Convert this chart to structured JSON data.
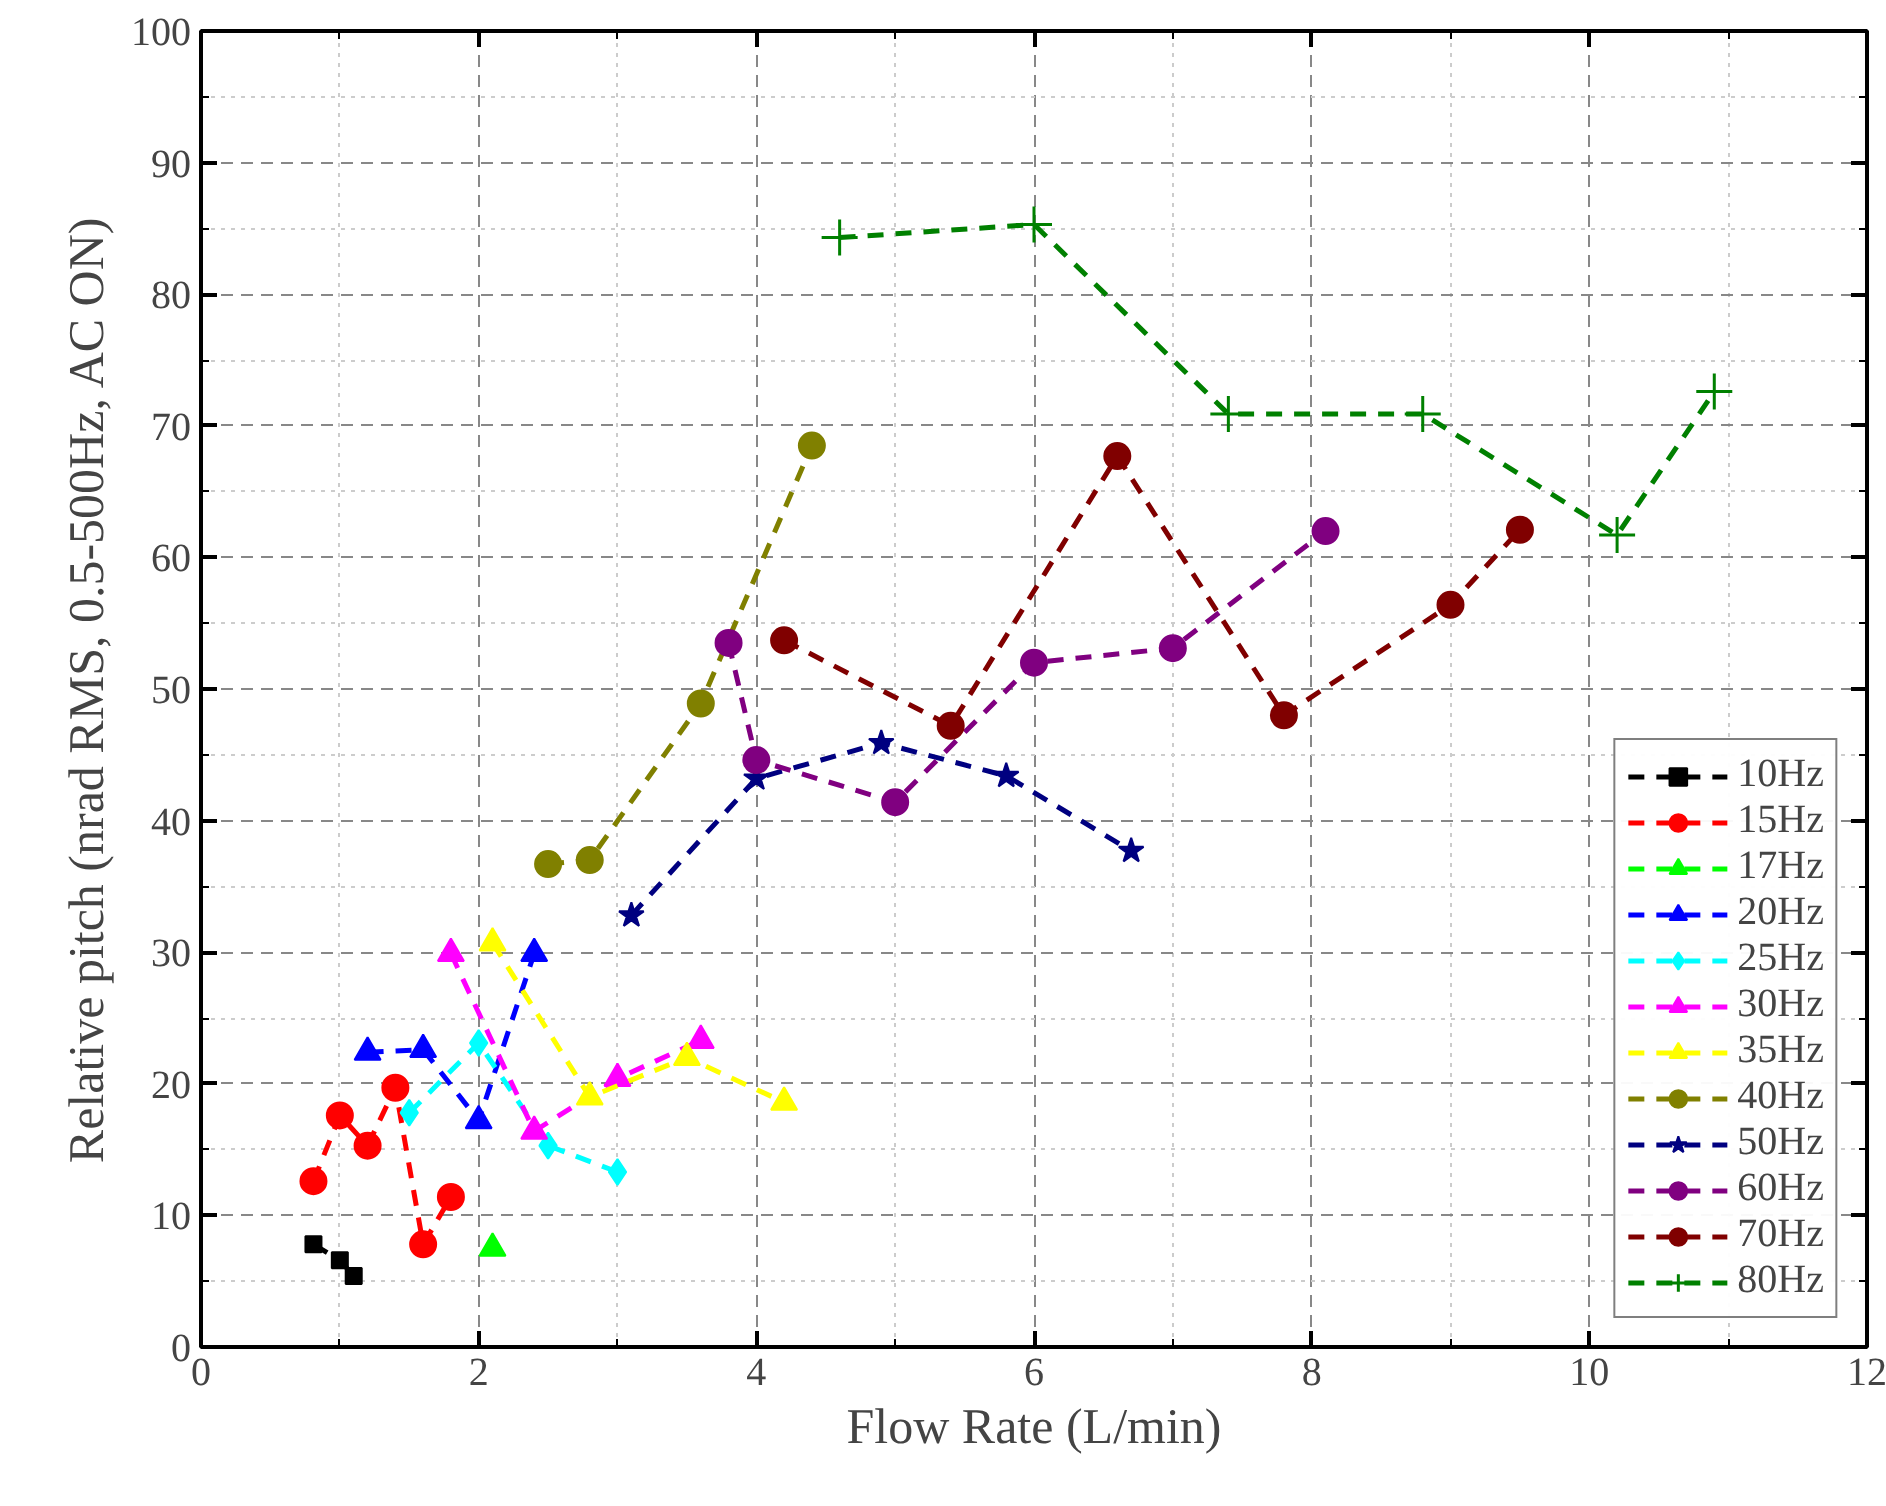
{
  "chart_data": {
    "type": "line",
    "xlabel": "Flow Rate (L/min)",
    "ylabel": "Relative pitch (nrad RMS, 0.5-500Hz, AC ON)",
    "xlim": [
      0,
      12
    ],
    "xticks": [
      0,
      2,
      4,
      6,
      8,
      10,
      12
    ],
    "ylim": [
      0,
      100
    ],
    "yticks": [
      0,
      10,
      20,
      30,
      40,
      50,
      60,
      70,
      80,
      90,
      100
    ],
    "grid": true,
    "legend": "bottom right",
    "line_style": "dashed",
    "series": [
      {
        "name": "10Hz",
        "color": "#000000",
        "marker": "square",
        "x": [
          0.81,
          1.0,
          1.1
        ],
        "values": [
          7.8,
          6.6,
          5.4
        ]
      },
      {
        "name": "15Hz",
        "color": "#ff0000",
        "marker": "circle",
        "x": [
          0.81,
          1.0,
          1.2,
          1.4,
          1.6,
          1.8
        ],
        "values": [
          12.6,
          17.6,
          15.3,
          19.7,
          7.8,
          11.4
        ]
      },
      {
        "name": "17Hz",
        "color": "#00ff00",
        "marker": "triangle",
        "x": [
          2.1
        ],
        "values": [
          7.5
        ]
      },
      {
        "name": "20Hz",
        "color": "#0000ff",
        "marker": "triangle",
        "x": [
          1.2,
          1.6,
          2.0,
          2.4
        ],
        "values": [
          22.4,
          22.6,
          17.2,
          29.9
        ]
      },
      {
        "name": "25Hz",
        "color": "#00ffff",
        "marker": "diamond",
        "x": [
          1.5,
          2.0,
          2.5,
          3.0
        ],
        "values": [
          17.8,
          23.1,
          15.3,
          13.3
        ]
      },
      {
        "name": "30Hz",
        "color": "#ff00ff",
        "marker": "triangle",
        "x": [
          1.8,
          2.4,
          3.0,
          3.6
        ],
        "values": [
          29.9,
          16.4,
          20.4,
          23.3
        ]
      },
      {
        "name": "35Hz",
        "color": "#ffff00",
        "marker": "triangle",
        "x": [
          2.1,
          2.8,
          3.5,
          4.2
        ],
        "values": [
          30.7,
          19.0,
          22.0,
          18.6
        ]
      },
      {
        "name": "40Hz",
        "color": "#808000",
        "marker": "circle",
        "x": [
          2.5,
          2.8,
          3.6,
          4.4
        ],
        "values": [
          36.7,
          37.0,
          48.9,
          68.5
        ]
      },
      {
        "name": "50Hz",
        "color": "#000080",
        "marker": "star",
        "x": [
          3.1,
          4.0,
          4.9,
          5.8,
          6.7
        ],
        "values": [
          32.8,
          43.2,
          45.9,
          43.4,
          37.7
        ]
      },
      {
        "name": "60Hz",
        "color": "#800080",
        "marker": "circle",
        "x": [
          3.8,
          4.0,
          5.0,
          6.0,
          7.0,
          8.1
        ],
        "values": [
          53.5,
          44.6,
          41.4,
          52.0,
          53.1,
          62.0
        ]
      },
      {
        "name": "70Hz",
        "color": "#800000",
        "marker": "circle",
        "x": [
          4.2,
          5.4,
          6.6,
          7.8,
          9.0,
          9.5
        ],
        "values": [
          53.7,
          47.2,
          67.7,
          48.0,
          56.4,
          62.1
        ]
      },
      {
        "name": "80Hz",
        "color": "#008000",
        "marker": "cross",
        "x": [
          4.6,
          6.0,
          7.4,
          8.8,
          10.2,
          10.9
        ],
        "values": [
          84.3,
          85.3,
          70.9,
          70.9,
          61.7,
          72.6
        ]
      }
    ]
  }
}
